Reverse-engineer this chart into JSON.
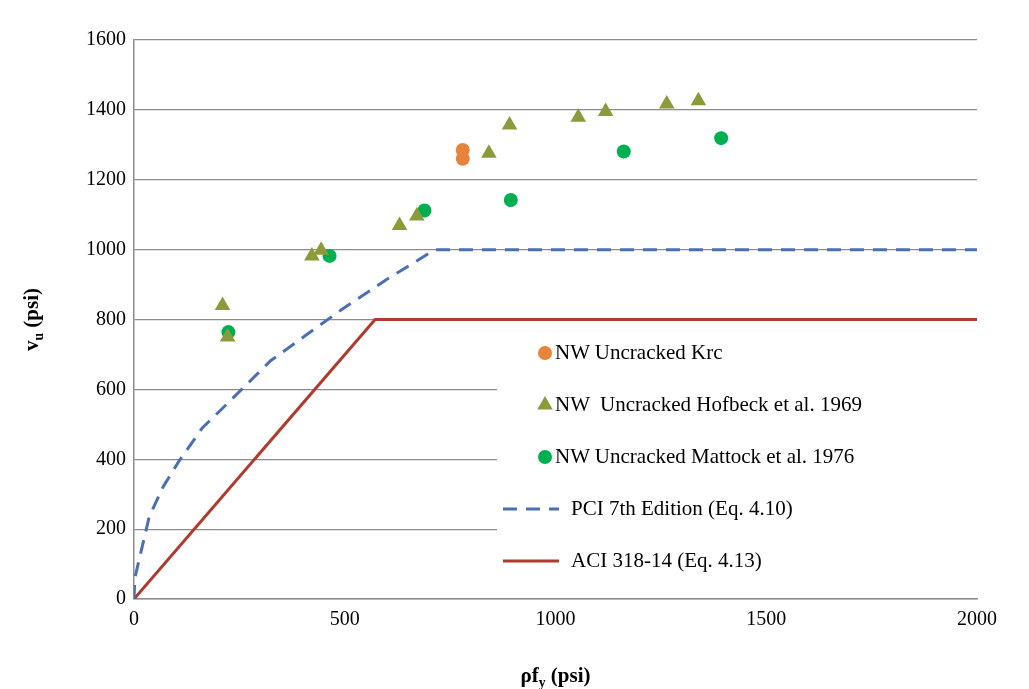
{
  "chart_data": {
    "type": "scatter",
    "xlabel": "ρf$_{y}$ (psi)",
    "ylabel": "v$_{u}$ (psi)",
    "xlim": [
      0,
      2000
    ],
    "xticks": [
      0,
      500,
      1000,
      1500,
      2000
    ],
    "ylim": [
      0,
      1600
    ],
    "yticks": [
      0,
      200,
      400,
      600,
      800,
      1000,
      1200,
      1400,
      1600
    ],
    "grid": "y",
    "legend": "bottom right",
    "series": [
      {
        "name": "NW Uncracked Krc",
        "marker": "circle",
        "color": "#e8833a",
        "x": [
          780,
          780
        ],
        "values": [
          1285,
          1260
        ]
      },
      {
        "name": "NW  Uncracked Hofbeck et al. 1969",
        "marker": "triangle",
        "color": "#8c9a3c",
        "x": [
          210,
          222,
          422,
          444,
          630,
          671,
          842,
          891,
          1054,
          1119,
          1264,
          1339
        ],
        "values": [
          840,
          750,
          982,
          998,
          1069,
          1096,
          1276,
          1357,
          1379,
          1395,
          1417,
          1426
        ]
      },
      {
        "name": "NW Uncracked Mattock et al. 1976",
        "marker": "circle",
        "color": "#00b050",
        "x": [
          224,
          464,
          689,
          894,
          1162,
          1393
        ],
        "values": [
          764,
          982,
          1112,
          1142,
          1281,
          1319
        ]
      },
      {
        "name": "PCI 7th Edition (Eq. 4.10)",
        "type": "line",
        "marker": "none",
        "line_style": "dashed",
        "color": "#4a6fb5",
        "x": [
          0,
          2,
          36,
          69,
          108,
          163,
          228,
          323,
          410,
          498,
          600,
          714,
          2000
        ],
        "values": [
          0,
          60,
          235,
          321,
          397,
          491,
          567,
          681,
          757,
          833,
          915,
          1000,
          1000
        ]
      },
      {
        "name": "ACI 318-14 (Eq. 4.13)",
        "type": "line",
        "marker": "none",
        "line_style": "solid",
        "color": "#b03a2e",
        "x": [
          0,
          572,
          2000
        ],
        "values": [
          0,
          800,
          800
        ]
      }
    ]
  }
}
